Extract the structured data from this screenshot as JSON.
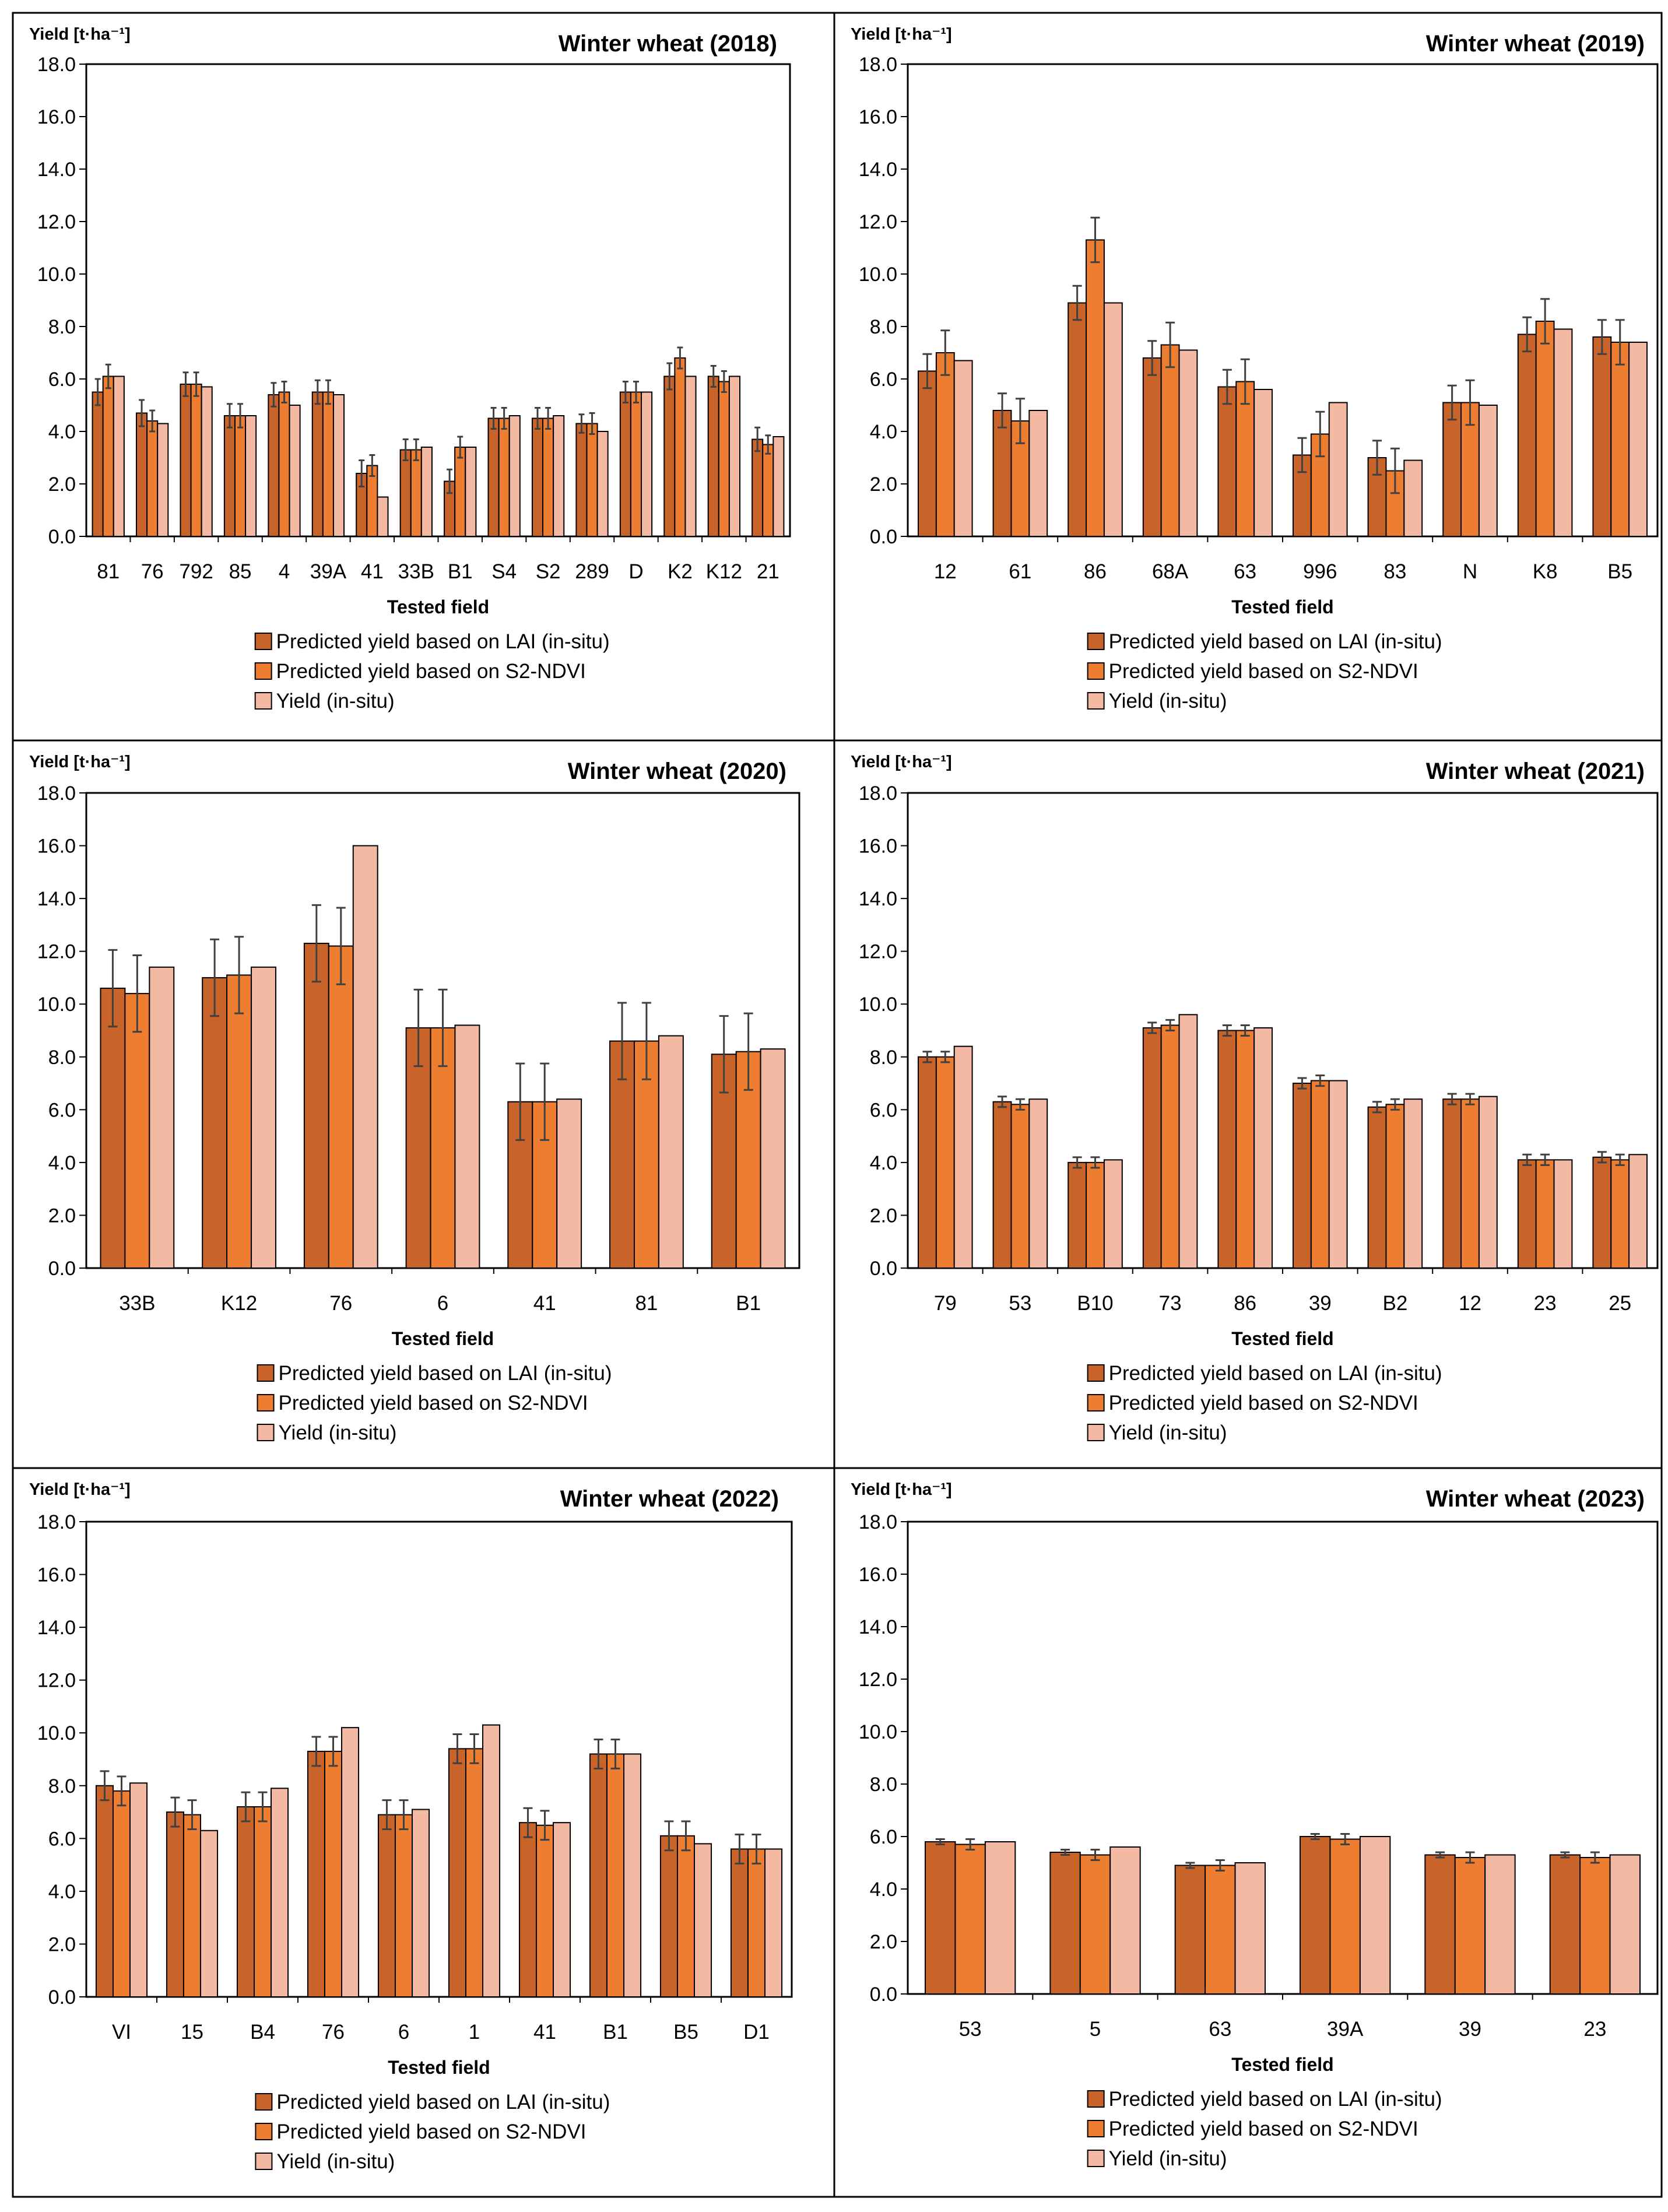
{
  "colors": {
    "lai": "#C8632A",
    "ndvi": "#ED7D31",
    "insitu": "#F4B9A2",
    "bar_outline": "#000000",
    "error_bar": "#404040",
    "frame": "#000000"
  },
  "series_names": [
    "Predicted yield based on LAI (in-situ)",
    "Predicted yield based on S2-NDVI",
    "Yield (in-situ)"
  ],
  "chart_data": [
    {
      "type": "bar",
      "title": "Winter wheat (2018)",
      "ylabel": "Yield [t·ha⁻¹]",
      "xlabel": "Tested field",
      "ylim": [
        0,
        18
      ],
      "yticks": [
        "0.0",
        "2.0",
        "4.0",
        "6.0",
        "8.0",
        "10.0",
        "12.0",
        "14.0",
        "16.0",
        "18.0"
      ],
      "categories": [
        "81",
        "76",
        "792",
        "85",
        "4",
        "39A",
        "41",
        "33B",
        "B1",
        "S4",
        "S2",
        "289",
        "D",
        "K2",
        "K12",
        "21"
      ],
      "series": [
        {
          "name": "Predicted yield based on LAI (in-situ)",
          "values": [
            5.5,
            4.7,
            5.8,
            4.6,
            5.4,
            5.5,
            2.4,
            3.3,
            2.1,
            4.5,
            4.5,
            4.3,
            5.5,
            6.1,
            6.1,
            3.7
          ],
          "errors": [
            0.5,
            0.5,
            0.45,
            0.45,
            0.45,
            0.45,
            0.5,
            0.4,
            0.45,
            0.4,
            0.4,
            0.35,
            0.4,
            0.5,
            0.4,
            0.45
          ]
        },
        {
          "name": "Predicted yield based on S2-NDVI",
          "values": [
            6.1,
            4.4,
            5.8,
            4.6,
            5.5,
            5.5,
            2.7,
            3.3,
            3.4,
            4.5,
            4.5,
            4.3,
            5.5,
            6.8,
            5.9,
            3.5
          ],
          "errors": [
            0.45,
            0.4,
            0.45,
            0.45,
            0.4,
            0.45,
            0.4,
            0.4,
            0.4,
            0.4,
            0.4,
            0.4,
            0.4,
            0.4,
            0.4,
            0.35
          ]
        },
        {
          "name": "Yield (in-situ)",
          "values": [
            6.1,
            4.3,
            5.7,
            4.6,
            5.0,
            5.4,
            1.5,
            3.4,
            3.4,
            4.6,
            4.6,
            4.0,
            5.5,
            6.1,
            6.1,
            3.8
          ]
        }
      ]
    },
    {
      "type": "bar",
      "title": "Winter wheat (2019)",
      "ylabel": "Yield [t·ha⁻¹]",
      "xlabel": "Tested field",
      "ylim": [
        0,
        18
      ],
      "yticks": [
        "0.0",
        "2.0",
        "4.0",
        "6.0",
        "8.0",
        "10.0",
        "12.0",
        "14.0",
        "16.0",
        "18.0"
      ],
      "categories": [
        "12",
        "61",
        "86",
        "68A",
        "63",
        "996",
        "83",
        "N",
        "K8",
        "B5"
      ],
      "series": [
        {
          "name": "Predicted yield based on LAI (in-situ)",
          "values": [
            6.3,
            4.8,
            8.9,
            6.8,
            5.7,
            3.1,
            3.0,
            5.1,
            7.7,
            7.6
          ],
          "errors": [
            0.65,
            0.65,
            0.65,
            0.65,
            0.65,
            0.65,
            0.65,
            0.65,
            0.65,
            0.65
          ]
        },
        {
          "name": "Predicted yield based on S2-NDVI",
          "values": [
            7.0,
            4.4,
            11.3,
            7.3,
            5.9,
            3.9,
            2.5,
            5.1,
            8.2,
            7.4
          ],
          "errors": [
            0.85,
            0.85,
            0.85,
            0.85,
            0.85,
            0.85,
            0.85,
            0.85,
            0.85,
            0.85
          ]
        },
        {
          "name": "Yield (in-situ)",
          "values": [
            6.7,
            4.8,
            8.9,
            7.1,
            5.6,
            5.1,
            2.9,
            5.0,
            7.9,
            7.4
          ]
        }
      ]
    },
    {
      "type": "bar",
      "title": "Winter wheat (2020)",
      "ylabel": "Yield [t·ha⁻¹]",
      "xlabel": "Tested field",
      "ylim": [
        0,
        18
      ],
      "yticks": [
        "0.0",
        "2.0",
        "4.0",
        "6.0",
        "8.0",
        "10.0",
        "12.0",
        "14.0",
        "16.0",
        "18.0"
      ],
      "categories": [
        "33B",
        "K12",
        "76",
        "6",
        "41",
        "81",
        "B1"
      ],
      "series": [
        {
          "name": "Predicted yield based on LAI (in-situ)",
          "values": [
            10.6,
            11.0,
            12.3,
            9.1,
            6.3,
            8.6,
            8.1
          ],
          "errors": [
            1.45,
            1.45,
            1.45,
            1.45,
            1.45,
            1.45,
            1.45
          ]
        },
        {
          "name": "Predicted yield based on S2-NDVI",
          "values": [
            10.4,
            11.1,
            12.2,
            9.1,
            6.3,
            8.6,
            8.2
          ],
          "errors": [
            1.45,
            1.45,
            1.45,
            1.45,
            1.45,
            1.45,
            1.45
          ]
        },
        {
          "name": "Yield (in-situ)",
          "values": [
            11.4,
            11.4,
            16.0,
            9.2,
            6.4,
            8.8,
            8.3
          ]
        }
      ]
    },
    {
      "type": "bar",
      "title": "Winter wheat (2021)",
      "ylabel": "Yield [t·ha⁻¹]",
      "xlabel": "Tested field",
      "ylim": [
        0,
        18
      ],
      "yticks": [
        "0.0",
        "2.0",
        "4.0",
        "6.0",
        "8.0",
        "10.0",
        "12.0",
        "14.0",
        "16.0",
        "18.0"
      ],
      "categories": [
        "79",
        "53",
        "B10",
        "73",
        "86",
        "39",
        "B2",
        "12",
        "23",
        "25"
      ],
      "series": [
        {
          "name": "Predicted yield based on LAI (in-situ)",
          "values": [
            8.0,
            6.3,
            4.0,
            9.1,
            9.0,
            7.0,
            6.1,
            6.4,
            4.1,
            4.2
          ],
          "errors": [
            0.2,
            0.2,
            0.2,
            0.2,
            0.2,
            0.2,
            0.2,
            0.2,
            0.2,
            0.2
          ]
        },
        {
          "name": "Predicted yield based on S2-NDVI",
          "values": [
            8.0,
            6.2,
            4.0,
            9.2,
            9.0,
            7.1,
            6.2,
            6.4,
            4.1,
            4.1
          ],
          "errors": [
            0.2,
            0.2,
            0.2,
            0.2,
            0.2,
            0.2,
            0.2,
            0.2,
            0.2,
            0.2
          ]
        },
        {
          "name": "Yield (in-situ)",
          "values": [
            8.4,
            6.4,
            4.1,
            9.6,
            9.1,
            7.1,
            6.4,
            6.5,
            4.1,
            4.3
          ]
        }
      ]
    },
    {
      "type": "bar",
      "title": "Winter wheat (2022)",
      "ylabel": "Yield [t·ha⁻¹]",
      "xlabel": "Tested field",
      "ylim": [
        0,
        18
      ],
      "yticks": [
        "0.0",
        "2.0",
        "4.0",
        "6.0",
        "8.0",
        "10.0",
        "12.0",
        "14.0",
        "16.0",
        "18.0"
      ],
      "categories": [
        "VI",
        "15",
        "B4",
        "76",
        "6",
        "1",
        "41",
        "B1",
        "B5",
        "D1"
      ],
      "series": [
        {
          "name": "Predicted yield based on LAI (in-situ)",
          "values": [
            8.0,
            7.0,
            7.2,
            9.3,
            6.9,
            9.4,
            6.6,
            9.2,
            6.1,
            5.6
          ],
          "errors": [
            0.55,
            0.55,
            0.55,
            0.55,
            0.55,
            0.55,
            0.55,
            0.55,
            0.55,
            0.55
          ]
        },
        {
          "name": "Predicted yield based on S2-NDVI",
          "values": [
            7.8,
            6.9,
            7.2,
            9.3,
            6.9,
            9.4,
            6.5,
            9.2,
            6.1,
            5.6
          ],
          "errors": [
            0.55,
            0.55,
            0.55,
            0.55,
            0.55,
            0.55,
            0.55,
            0.55,
            0.55,
            0.55
          ]
        },
        {
          "name": "Yield (in-situ)",
          "values": [
            8.1,
            6.3,
            7.9,
            10.2,
            7.1,
            10.3,
            6.6,
            9.2,
            5.8,
            5.6
          ]
        }
      ]
    },
    {
      "type": "bar",
      "title": "Winter wheat (2023)",
      "ylabel": "Yield [t·ha⁻¹]",
      "xlabel": "Tested field",
      "ylim": [
        0,
        18
      ],
      "yticks": [
        "0.0",
        "2.0",
        "4.0",
        "6.0",
        "8.0",
        "10.0",
        "12.0",
        "14.0",
        "16.0",
        "18.0"
      ],
      "categories": [
        "53",
        "5",
        "63",
        "39A",
        "39",
        "23"
      ],
      "series": [
        {
          "name": "Predicted yield based on LAI (in-situ)",
          "values": [
            5.8,
            5.4,
            4.9,
            6.0,
            5.3,
            5.3
          ],
          "errors": [
            0.1,
            0.1,
            0.1,
            0.1,
            0.1,
            0.1
          ]
        },
        {
          "name": "Predicted yield based on S2-NDVI",
          "values": [
            5.7,
            5.3,
            4.9,
            5.9,
            5.2,
            5.2
          ],
          "errors": [
            0.2,
            0.2,
            0.2,
            0.2,
            0.2,
            0.2
          ]
        },
        {
          "name": "Yield (in-situ)",
          "values": [
            5.8,
            5.6,
            5.0,
            6.0,
            5.3,
            5.3
          ]
        }
      ]
    }
  ]
}
